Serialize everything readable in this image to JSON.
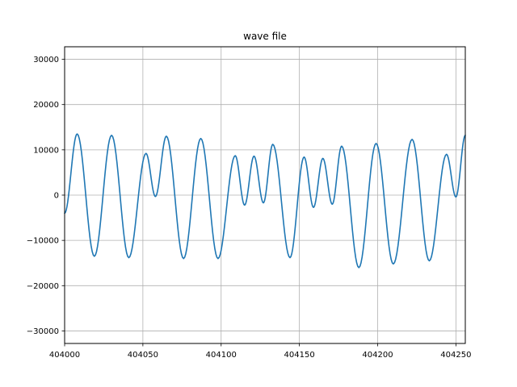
{
  "chart_data": {
    "type": "line",
    "title": "wave file",
    "xlabel": "",
    "ylabel": "",
    "xlim": [
      404000,
      404256
    ],
    "ylim": [
      -32768,
      32767
    ],
    "grid": true,
    "x_ticks": [
      404000,
      404050,
      404100,
      404150,
      404200,
      404250
    ],
    "y_ticks": [
      -30000,
      -20000,
      -10000,
      0,
      10000,
      20000,
      30000
    ],
    "x_tick_labels": [
      "404000",
      "404050",
      "404100",
      "404150",
      "404200",
      "404250"
    ],
    "y_tick_labels": [
      "−30000",
      "−20000",
      "−10000",
      "0",
      "10000",
      "20000",
      "30000"
    ],
    "series": [
      {
        "color": "#1f77b4",
        "x": [
          404000,
          404008,
          404019,
          404030,
          404041,
          404052,
          404058,
          404065,
          404076,
          404087,
          404098,
          404109,
          404115,
          404121,
          404127,
          404133,
          404144,
          404153,
          404159,
          404165,
          404171,
          404177,
          404188,
          404199,
          404210,
          404222,
          404233,
          404244,
          404250,
          404256
        ],
        "y": [
          -4000,
          13500,
          -13500,
          13200,
          -13800,
          9200,
          -300,
          13000,
          -14000,
          12500,
          -14000,
          8700,
          -2200,
          8600,
          -1700,
          11200,
          -13800,
          8400,
          -2700,
          8100,
          -2000,
          10800,
          -16000,
          11400,
          -15200,
          12300,
          -14500,
          9000,
          -400,
          13200
        ]
      }
    ]
  }
}
